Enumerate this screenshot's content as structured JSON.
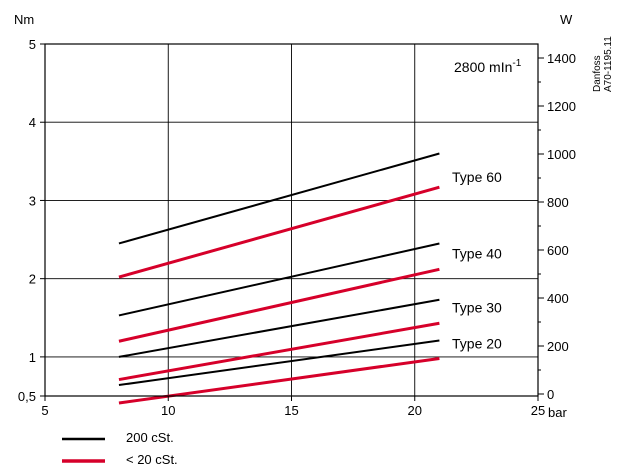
{
  "chart_data": {
    "type": "line",
    "xlabel": "bar",
    "ylabel": "Nm",
    "y2label": "W",
    "xlim": [
      5,
      25
    ],
    "ylim": [
      0.5,
      5
    ],
    "y2lim": [
      0,
      1400
    ],
    "x_ticks": [
      "5",
      "10",
      "15",
      "20",
      "25"
    ],
    "y_ticks": [
      {
        "value": 0.5,
        "label": "0,5"
      },
      {
        "value": 1,
        "label": "1"
      },
      {
        "value": 2,
        "label": "2"
      },
      {
        "value": 3,
        "label": "3"
      },
      {
        "value": 4,
        "label": "4"
      },
      {
        "value": 5,
        "label": "5"
      }
    ],
    "y2_ticks": [
      "0",
      "200",
      "400",
      "600",
      "800",
      "1000",
      "1200",
      "1400"
    ],
    "grid": true,
    "annotation": {
      "text": "2800 mIn",
      "sup": "-1"
    },
    "code_text": [
      "Danfoss",
      "A70-1195.11"
    ],
    "legend": [
      {
        "label": "200 cSt.",
        "color": "#000000"
      },
      {
        "label": "< 20 cSt.",
        "color": "#d6002a"
      }
    ],
    "type_labels": [
      {
        "text": "Type 60",
        "y": 3.3
      },
      {
        "text": "Type 40",
        "y": 2.32
      },
      {
        "text": "Type 30",
        "y": 1.63
      },
      {
        "text": "Type 20",
        "y": 1.17
      }
    ],
    "series": [
      {
        "x": [
          8,
          21
        ],
        "y": [
          2.45,
          3.6
        ],
        "color": "#000000"
      },
      {
        "x": [
          8,
          21
        ],
        "y": [
          2.02,
          3.17
        ],
        "color": "#d6002a"
      },
      {
        "x": [
          8,
          21
        ],
        "y": [
          1.53,
          2.45
        ],
        "color": "#000000"
      },
      {
        "x": [
          8,
          21
        ],
        "y": [
          1.2,
          2.12
        ],
        "color": "#d6002a"
      },
      {
        "x": [
          8,
          21
        ],
        "y": [
          1.0,
          1.73
        ],
        "color": "#000000"
      },
      {
        "x": [
          8,
          21
        ],
        "y": [
          0.71,
          1.43
        ],
        "color": "#d6002a"
      },
      {
        "x": [
          8,
          21
        ],
        "y": [
          0.64,
          1.21
        ],
        "color": "#000000"
      },
      {
        "x": [
          8,
          21
        ],
        "y": [
          0.41,
          0.98
        ],
        "color": "#d6002a"
      }
    ]
  }
}
